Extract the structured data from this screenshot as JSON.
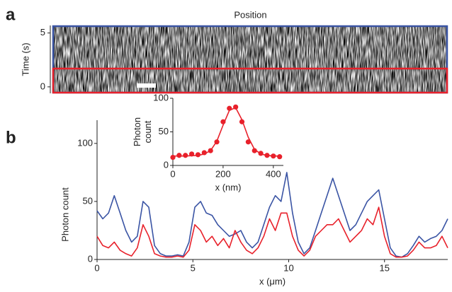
{
  "chart_data": [
    {
      "type": "image",
      "label": "a",
      "title": "Position",
      "ylabel": "Time (s)",
      "ylim": [
        -0.6,
        5.7
      ],
      "yticks": [
        0,
        5
      ]
    },
    {
      "type": "line",
      "label": "b",
      "ylabel": "Photon count",
      "xlabel": "x (μm)",
      "xlim": [
        0,
        18.3
      ],
      "ylim": [
        0,
        120
      ],
      "xticks": [
        0,
        5,
        10,
        15
      ],
      "yticks": [
        0,
        50,
        100
      ],
      "x": [
        0,
        0.3,
        0.6,
        0.9,
        1.2,
        1.5,
        1.8,
        2.1,
        2.4,
        2.7,
        3.0,
        3.3,
        3.6,
        3.9,
        4.2,
        4.5,
        4.8,
        5.1,
        5.4,
        5.7,
        6.0,
        6.3,
        6.6,
        6.9,
        7.2,
        7.5,
        7.8,
        8.1,
        8.4,
        8.7,
        9.0,
        9.3,
        9.6,
        9.9,
        10.2,
        10.5,
        10.8,
        11.1,
        11.4,
        11.7,
        12.0,
        12.3,
        12.6,
        12.9,
        13.2,
        13.5,
        13.8,
        14.1,
        14.4,
        14.7,
        15.0,
        15.3,
        15.6,
        15.9,
        16.2,
        16.5,
        16.8,
        17.1,
        17.4,
        17.7,
        18.0,
        18.3
      ],
      "series": [
        {
          "color": "#3a54a4",
          "values": [
            42,
            35,
            40,
            55,
            40,
            25,
            15,
            20,
            50,
            45,
            12,
            5,
            3,
            3,
            4,
            3,
            15,
            45,
            50,
            40,
            38,
            30,
            25,
            20,
            22,
            25,
            15,
            10,
            15,
            30,
            45,
            55,
            50,
            75,
            40,
            15,
            5,
            10,
            25,
            40,
            55,
            70,
            55,
            40,
            25,
            30,
            40,
            50,
            55,
            60,
            35,
            10,
            3,
            2,
            5,
            12,
            20,
            15,
            18,
            20,
            25,
            35
          ]
        },
        {
          "color": "#e8212b",
          "values": [
            20,
            12,
            10,
            15,
            8,
            5,
            3,
            10,
            30,
            20,
            5,
            3,
            2,
            2,
            3,
            2,
            8,
            30,
            25,
            15,
            20,
            12,
            18,
            10,
            25,
            15,
            8,
            5,
            10,
            20,
            35,
            25,
            40,
            40,
            20,
            8,
            3,
            8,
            20,
            25,
            30,
            30,
            35,
            25,
            15,
            20,
            25,
            35,
            30,
            45,
            20,
            5,
            2,
            2,
            3,
            8,
            15,
            10,
            10,
            12,
            20,
            10
          ]
        }
      ]
    },
    {
      "type": "scatter",
      "ylabel": "Photon count",
      "xlabel": "x (nm)",
      "xlim": [
        0,
        440
      ],
      "ylim": [
        0,
        100
      ],
      "xticks": [
        0,
        200,
        400
      ],
      "yticks": [
        0,
        50,
        100
      ],
      "x": [
        0,
        25,
        50,
        75,
        100,
        125,
        150,
        175,
        200,
        225,
        250,
        275,
        300,
        325,
        350,
        375,
        400,
        425
      ],
      "series": [
        {
          "color": "#e8212b",
          "mode": "markers",
          "values": [
            12,
            15,
            15,
            17,
            16,
            19,
            22,
            35,
            65,
            85,
            87,
            65,
            35,
            22,
            18,
            15,
            14,
            13
          ]
        },
        {
          "color": "#e8212b",
          "mode": "line",
          "values": [
            14,
            14,
            14,
            14.5,
            15,
            17,
            22,
            36,
            60,
            82,
            86,
            68,
            42,
            24,
            17,
            15,
            14,
            14
          ]
        }
      ]
    }
  ]
}
